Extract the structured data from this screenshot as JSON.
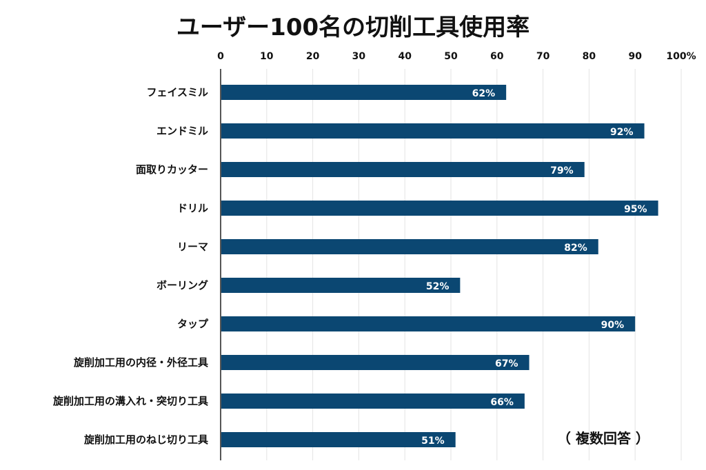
{
  "chart_data": {
    "type": "bar",
    "orientation": "horizontal",
    "title": "ユーザー100名の切削工具使用率",
    "categories": [
      "フェイスミル",
      "エンドミル",
      "面取りカッター",
      "ドリル",
      "リーマ",
      "ボーリング",
      "タップ",
      "旋削加工用の内径・外径工具",
      "旋削加工用の溝入れ・突切り工具",
      "旋削加工用のねじ切り工具"
    ],
    "values": [
      62,
      92,
      79,
      95,
      82,
      52,
      90,
      67,
      66,
      51
    ],
    "data_labels": [
      "62%",
      "92%",
      "79%",
      "95%",
      "82%",
      "52%",
      "90%",
      "67%",
      "66%",
      "51%"
    ],
    "xlim": [
      0,
      100
    ],
    "ticks": [
      "0",
      "10",
      "20",
      "30",
      "40",
      "50",
      "60",
      "70",
      "80",
      "90",
      "100%"
    ],
    "grid": true,
    "note": "（ 複数回答 ）",
    "bar_color": "#0b4772"
  }
}
